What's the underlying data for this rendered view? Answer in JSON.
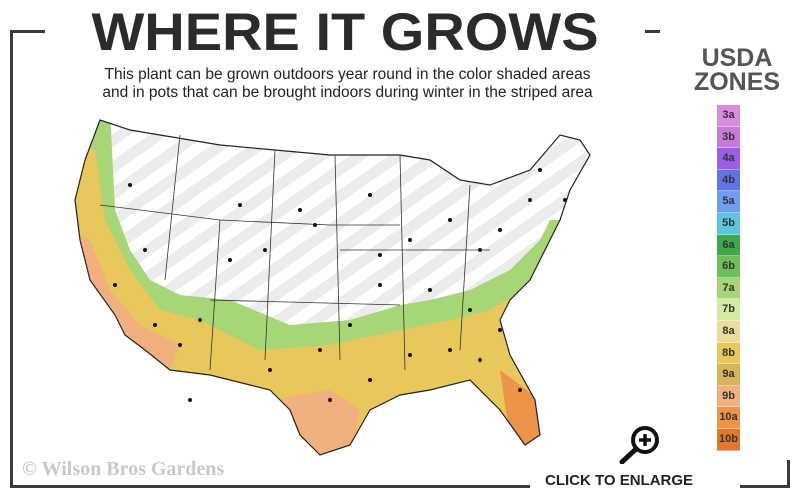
{
  "header": {
    "title": "WHERE IT GROWS",
    "subtitle_line1": "This plant can be grown outdoors year round in the color shaded areas",
    "subtitle_line2": "and in pots that can be brought indoors during winter in the striped area"
  },
  "legend": {
    "title_line1": "USDA",
    "title_line2": "ZONES",
    "zones": [
      {
        "label": "3a",
        "color": "#d98ce0"
      },
      {
        "label": "3b",
        "color": "#c77ad6"
      },
      {
        "label": "4a",
        "color": "#9a5ee8"
      },
      {
        "label": "4b",
        "color": "#5f74e6"
      },
      {
        "label": "5a",
        "color": "#6f9ef0"
      },
      {
        "label": "5b",
        "color": "#5cc6e0"
      },
      {
        "label": "6a",
        "color": "#3fa84a"
      },
      {
        "label": "6b",
        "color": "#6cc05a"
      },
      {
        "label": "7a",
        "color": "#a6d676"
      },
      {
        "label": "7b",
        "color": "#d4eaa4"
      },
      {
        "label": "8a",
        "color": "#ecdc9a"
      },
      {
        "label": "8b",
        "color": "#e8c85a"
      },
      {
        "label": "9a",
        "color": "#d8b45a"
      },
      {
        "label": "9b",
        "color": "#f2b07e"
      },
      {
        "label": "10a",
        "color": "#ec9448"
      },
      {
        "label": "10b",
        "color": "#e0782e"
      }
    ]
  },
  "map": {
    "grow_zone_colors": [
      "#e8c85a",
      "#a6d676",
      "#f2b07e",
      "#ec9448"
    ]
  },
  "footer": {
    "copyright": "© Wilson Bros Gardens",
    "enlarge_label": "CLICK TO ENLARGE",
    "enlarge_icon": "zoom-in-icon"
  }
}
